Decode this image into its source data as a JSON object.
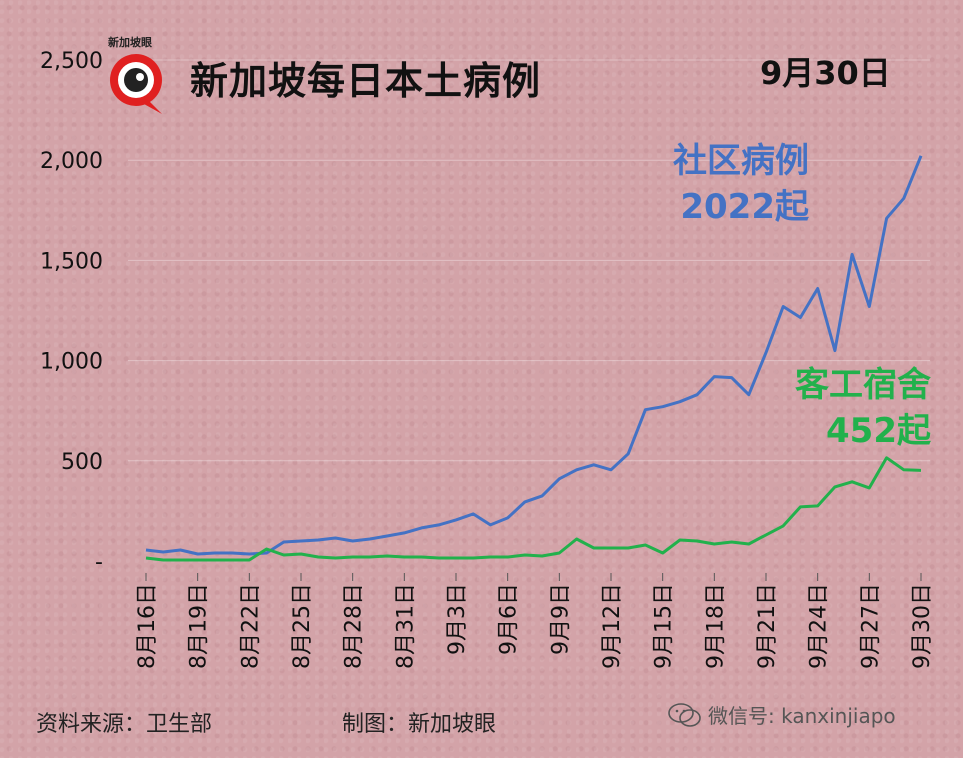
{
  "title": "新加坡每日本土病例",
  "date_label": "9月30日",
  "logo_text": "新加坡眼",
  "footer": {
    "source": "资料来源：卫生部",
    "maker": "制图：新加坡眼",
    "wechat": "微信号: kanxinjiapo"
  },
  "labels": {
    "community_name": "社区病例",
    "community_value": "2022起",
    "dorm_name": "客工宿舍",
    "dorm_value": "452起"
  },
  "colors": {
    "community": "#4472c4",
    "dorm": "#22b14c",
    "logo_red": "#e02020"
  },
  "chart_data": {
    "type": "line",
    "ylim": [
      0,
      2500
    ],
    "yticks": [
      {
        "value": 0,
        "label": "-"
      },
      {
        "value": 500,
        "label": "500"
      },
      {
        "value": 1000,
        "label": "1,000"
      },
      {
        "value": 1500,
        "label": "1,500"
      },
      {
        "value": 2000,
        "label": "2,000"
      },
      {
        "value": 2500,
        "label": "2,500"
      }
    ],
    "grid": true,
    "x": [
      "8月16日",
      "8月17日",
      "8月18日",
      "8月19日",
      "8月20日",
      "8月21日",
      "8月22日",
      "8月23日",
      "8月24日",
      "8月25日",
      "8月26日",
      "8月27日",
      "8月28日",
      "8月29日",
      "8月30日",
      "8月31日",
      "9月1日",
      "9月2日",
      "9月3日",
      "9月4日",
      "9月5日",
      "9月6日",
      "9月7日",
      "9月8日",
      "9月9日",
      "9月10日",
      "9月11日",
      "9月12日",
      "9月13日",
      "9月14日",
      "9月15日",
      "9月16日",
      "9月17日",
      "9月18日",
      "9月19日",
      "9月20日",
      "9月21日",
      "9月22日",
      "9月23日",
      "9月24日",
      "9月25日",
      "9月26日",
      "9月27日",
      "9月28日",
      "9月29日",
      "9月30日"
    ],
    "xtick_labels": [
      "8月16日",
      "8月19日",
      "8月22日",
      "8月25日",
      "8月28日",
      "8月31日",
      "9月3日",
      "9月6日",
      "9月9日",
      "9月12日",
      "9月15日",
      "9月18日",
      "9月21日",
      "9月24日",
      "9月27日",
      "9月30日"
    ],
    "series": [
      {
        "name": "社区病例",
        "values": [
          55,
          45,
          55,
          35,
          40,
          40,
          35,
          40,
          95,
          100,
          105,
          115,
          100,
          110,
          125,
          140,
          165,
          180,
          205,
          235,
          180,
          215,
          295,
          325,
          410,
          455,
          480,
          455,
          535,
          755,
          770,
          795,
          830,
          920,
          915,
          830,
          1040,
          1270,
          1215,
          1360,
          1050,
          1530,
          1270,
          1710,
          1810,
          2022
        ]
      },
      {
        "name": "客工宿舍",
        "values": [
          15,
          5,
          5,
          5,
          5,
          5,
          5,
          60,
          30,
          35,
          20,
          15,
          20,
          20,
          25,
          20,
          20,
          15,
          15,
          15,
          20,
          20,
          30,
          25,
          40,
          110,
          65,
          65,
          65,
          80,
          40,
          105,
          100,
          85,
          95,
          85,
          130,
          175,
          270,
          275,
          370,
          395,
          365,
          515,
          455,
          452
        ]
      }
    ]
  }
}
